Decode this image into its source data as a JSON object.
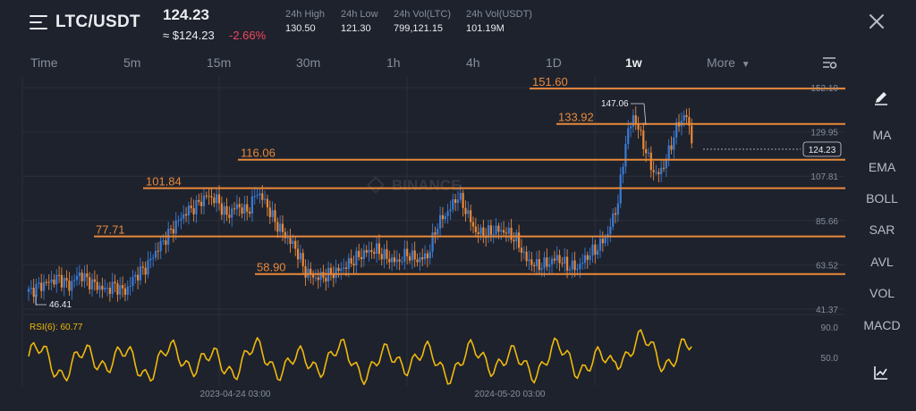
{
  "header": {
    "pair": "LTC/USDT",
    "price": "124.23",
    "approx": "≈ $124.23",
    "change": "-2.66%",
    "stats": [
      {
        "label": "24h High",
        "value": "130.50"
      },
      {
        "label": "24h Low",
        "value": "121.30"
      },
      {
        "label": "24h Vol(LTC)",
        "value": "799,121.15"
      },
      {
        "label": "24h Vol(USDT)",
        "value": "101.19M"
      }
    ]
  },
  "timeframes": [
    {
      "label": "Time"
    },
    {
      "label": "5m"
    },
    {
      "label": "15m"
    },
    {
      "label": "30m"
    },
    {
      "label": "1h"
    },
    {
      "label": "4h"
    },
    {
      "label": "1D"
    },
    {
      "label": "1w"
    },
    {
      "label": "More"
    }
  ],
  "active_timeframe": "1w",
  "sidebar": {
    "items": [
      {
        "label": "MA"
      },
      {
        "label": "EMA"
      },
      {
        "label": "BOLL"
      },
      {
        "label": "SAR"
      },
      {
        "label": "AVL"
      },
      {
        "label": "VOL"
      },
      {
        "label": "MACD"
      }
    ]
  },
  "chart": {
    "price_axis": [
      "152.10",
      "129.95",
      "107.81",
      "85.66",
      "63.52",
      "41.37"
    ],
    "current_price": "124.23",
    "high_marker": "147.06",
    "low_marker": "46.41",
    "levels": [
      "151.60",
      "133.92",
      "116.06",
      "101.84",
      "77.71",
      "58.90"
    ],
    "rsi_label": "RSI(6): 60.77",
    "rsi_axis": [
      "90.0",
      "50.0"
    ],
    "dates": [
      "2023-04-24 03:00",
      "2024-05-20 03:00"
    ],
    "watermark": "BINANCE",
    "colors": {
      "up": "#3a7bd5",
      "down": "#e8893a",
      "level": "#e8893a",
      "rsi": "#f0b90b"
    }
  }
}
